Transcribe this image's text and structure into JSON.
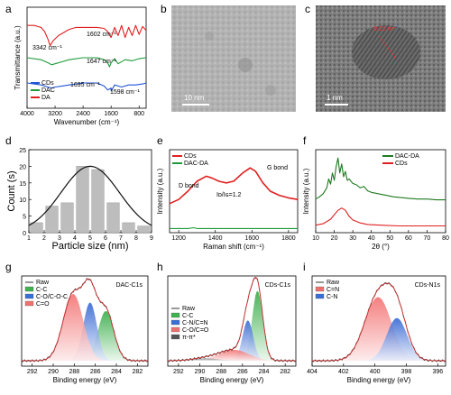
{
  "panels": {
    "a": {
      "label": "a"
    },
    "b": {
      "label": "b",
      "scalebar": "10 nm"
    },
    "c": {
      "label": "c",
      "scalebar": "1 nm",
      "lattice": "0.21 nm"
    },
    "d": {
      "label": "d"
    },
    "e": {
      "label": "e"
    },
    "f": {
      "label": "f"
    },
    "g": {
      "label": "g"
    },
    "h": {
      "label": "h"
    },
    "i": {
      "label": "i"
    }
  },
  "chart_data": [
    {
      "id": "a",
      "type": "line",
      "xlabel": "Wavenumber (cm⁻¹)",
      "ylabel": "Transmittance (a.u.)",
      "xlim": [
        4000,
        600
      ],
      "xticks": [
        "4000",
        "3200",
        "2400",
        "1600",
        "800"
      ],
      "legend": {
        "placement": "bottom-left",
        "entries": [
          "CDs",
          "DAC",
          "DA"
        ]
      },
      "annotations": [
        "3342 cm⁻¹",
        "1602 cm⁻¹",
        "1647 cm⁻¹",
        "1695 cm⁻¹",
        "1598 cm⁻¹"
      ],
      "series": [
        {
          "name": "DA",
          "color": "#e02020",
          "offset": 0.82,
          "x": [
            4000,
            3800,
            3600,
            3500,
            3400,
            3342,
            3250,
            3100,
            3000,
            2800,
            2600,
            2400,
            2200,
            2000,
            1800,
            1700,
            1602,
            1500,
            1400,
            1300,
            1200,
            1100,
            1000,
            900,
            800,
            700,
            600
          ],
          "y": [
            0.0,
            0.0,
            -0.02,
            -0.06,
            -0.14,
            -0.2,
            -0.15,
            -0.1,
            -0.08,
            -0.04,
            -0.02,
            -0.02,
            -0.02,
            -0.02,
            -0.03,
            -0.06,
            -0.12,
            -0.02,
            -0.1,
            0.0,
            -0.12,
            -0.02,
            -0.1,
            0.0,
            -0.09,
            -0.01,
            -0.05
          ]
        },
        {
          "name": "DAC",
          "color": "#1f9a3a",
          "offset": 0.5,
          "x": [
            4000,
            3600,
            3400,
            3300,
            3200,
            3000,
            2800,
            2400,
            2000,
            1800,
            1700,
            1647,
            1600,
            1500,
            1400,
            1200,
            1000,
            800,
            600
          ],
          "y": [
            0.0,
            -0.02,
            -0.05,
            -0.07,
            -0.06,
            -0.04,
            -0.02,
            0.0,
            0.0,
            -0.02,
            -0.05,
            -0.09,
            -0.05,
            -0.01,
            -0.06,
            -0.02,
            -0.03,
            -0.01,
            0.0
          ]
        },
        {
          "name": "CDs",
          "color": "#2255d6",
          "offset": 0.25,
          "x": [
            4000,
            3600,
            3400,
            3300,
            3200,
            3000,
            2800,
            2400,
            2000,
            1800,
            1695,
            1600,
            1598,
            1500,
            1300,
            1100,
            900,
            700,
            600
          ],
          "y": [
            0.0,
            -0.02,
            -0.04,
            -0.05,
            -0.04,
            -0.03,
            -0.02,
            0.0,
            0.0,
            -0.03,
            -0.07,
            -0.05,
            -0.08,
            -0.02,
            -0.04,
            -0.02,
            -0.02,
            -0.01,
            0.0
          ]
        }
      ]
    },
    {
      "id": "d",
      "type": "bar",
      "xlabel": "Particle size (nm)",
      "ylabel": "Count (s)",
      "xlim": [
        1,
        9
      ],
      "ylim": [
        0,
        25
      ],
      "xticks": [
        "1",
        "2",
        "3",
        "4",
        "5",
        "6",
        "7",
        "8",
        "9"
      ],
      "yticks": [
        "0",
        "5",
        "10",
        "15",
        "20",
        "25"
      ],
      "bars": {
        "x": [
          1.5,
          2.5,
          3.5,
          4.5,
          5.5,
          6.5,
          7.5,
          8.5
        ],
        "values": [
          3,
          8,
          9,
          20,
          19,
          9,
          3,
          2
        ]
      },
      "fit": {
        "type": "gaussian",
        "mean": 5.0,
        "sigma": 1.9,
        "peak": 20
      }
    },
    {
      "id": "e",
      "type": "line",
      "xlabel": "Raman shift (cm⁻¹)",
      "ylabel": "Intensity (a.u.)",
      "xlim": [
        1150,
        1850
      ],
      "xticks": [
        "1200",
        "1400",
        "1600",
        "1800"
      ],
      "legend": {
        "placement": "top-left",
        "entries": [
          "CDs",
          "DAC-DA"
        ]
      },
      "annotations": [
        "D bond",
        "G bond",
        "Iᴅ/Iɢ=1.2"
      ],
      "series": [
        {
          "name": "CDs",
          "color": "#e02020",
          "x": [
            1150,
            1200,
            1250,
            1300,
            1350,
            1380,
            1420,
            1460,
            1500,
            1550,
            1590,
            1620,
            1660,
            1700,
            1750,
            1800,
            1850
          ],
          "y": [
            0.35,
            0.4,
            0.5,
            0.62,
            0.68,
            0.66,
            0.62,
            0.6,
            0.62,
            0.72,
            0.78,
            0.74,
            0.6,
            0.5,
            0.45,
            0.42,
            0.4
          ]
        },
        {
          "name": "DAC-DA",
          "color": "#1f9a3a",
          "x": [
            1150,
            1250,
            1280,
            1300,
            1320,
            1400,
            1500,
            1600,
            1700,
            1850
          ],
          "y": [
            0.05,
            0.05,
            0.06,
            0.05,
            0.05,
            0.05,
            0.05,
            0.05,
            0.05,
            0.05
          ]
        }
      ]
    },
    {
      "id": "f",
      "type": "line",
      "xlabel": "2θ (°)",
      "ylabel": "Intensity (a.u.)",
      "xlim": [
        10,
        80
      ],
      "xticks": [
        "10",
        "20",
        "30",
        "40",
        "50",
        "60",
        "70",
        "80"
      ],
      "legend": {
        "placement": "top-right",
        "entries": [
          "DAC-DA",
          "CDs"
        ]
      },
      "series": [
        {
          "name": "DAC-DA",
          "color": "#1f7a1f",
          "x": [
            10,
            12,
            14,
            16,
            17,
            18,
            19,
            20,
            21,
            22,
            23,
            24,
            25,
            26,
            27,
            28,
            30,
            32,
            34,
            36,
            38,
            40,
            44,
            48,
            52,
            56,
            60,
            65,
            70,
            75,
            80
          ],
          "y": [
            0.45,
            0.48,
            0.52,
            0.6,
            0.72,
            0.65,
            0.8,
            0.7,
            0.88,
            1.0,
            0.8,
            0.92,
            0.75,
            0.82,
            0.7,
            0.72,
            0.66,
            0.64,
            0.6,
            0.62,
            0.56,
            0.54,
            0.52,
            0.5,
            0.48,
            0.47,
            0.46,
            0.45,
            0.45,
            0.44,
            0.44
          ]
        },
        {
          "name": "CDs",
          "color": "#e02020",
          "x": [
            10,
            14,
            18,
            20,
            22,
            24,
            26,
            28,
            30,
            34,
            38,
            45,
            55,
            65,
            80
          ],
          "y": [
            0.1,
            0.12,
            0.18,
            0.24,
            0.3,
            0.33,
            0.3,
            0.22,
            0.17,
            0.13,
            0.11,
            0.1,
            0.09,
            0.09,
            0.09
          ]
        }
      ]
    },
    {
      "id": "g",
      "type": "line",
      "title": "DAC-C1s",
      "xlabel": "Binding energy (eV)",
      "xlim": [
        293,
        281
      ],
      "xticks": [
        "292",
        "290",
        "288",
        "286",
        "284",
        "282"
      ],
      "legend": {
        "placement": "top-left",
        "entries": [
          "Raw",
          "C-C",
          "C-O/C-O-C",
          "C=O"
        ]
      },
      "components": [
        {
          "name": "C-C",
          "color": "#3fb34f",
          "center": 285.0,
          "height": 0.64,
          "width": 0.75
        },
        {
          "name": "C-O/C-O-C",
          "color": "#3a6fd8",
          "center": 286.5,
          "height": 0.75,
          "width": 0.65
        },
        {
          "name": "C=O",
          "color": "#f07070",
          "center": 288.1,
          "height": 0.86,
          "width": 0.95
        }
      ]
    },
    {
      "id": "h",
      "type": "line",
      "title": "CDs-C1s",
      "xlabel": "Binding energy (eV)",
      "xlim": [
        293,
        281
      ],
      "xticks": [
        "292",
        "290",
        "288",
        "286",
        "284",
        "282"
      ],
      "legend": {
        "placement": "bottom-left",
        "entries": [
          "Raw",
          "C-C",
          "C-N/C=N",
          "C-O/C=O",
          "π-π*"
        ]
      },
      "components": [
        {
          "name": "C-C",
          "color": "#3fb34f",
          "center": 284.6,
          "height": 0.9,
          "width": 0.5
        },
        {
          "name": "C-N/C=N",
          "color": "#3a6fd8",
          "center": 285.5,
          "height": 0.52,
          "width": 0.5
        },
        {
          "name": "C-O/C=O",
          "color": "#f07070",
          "center": 286.8,
          "height": 0.14,
          "width": 1.4
        },
        {
          "name": "π-π*",
          "color": "#555555",
          "center": 289.5,
          "height": 0.03,
          "width": 1.2
        }
      ]
    },
    {
      "id": "i",
      "type": "line",
      "title": "CDs-N1s",
      "xlabel": "Binding energy (eV)",
      "xlim": [
        404,
        395.5
      ],
      "xticks": [
        "404",
        "402",
        "400",
        "398",
        "396"
      ],
      "legend": {
        "placement": "top-left",
        "entries": [
          "Raw",
          "C=N",
          "C-N"
        ]
      },
      "components": [
        {
          "name": "C=N",
          "color": "#f07070",
          "center": 399.8,
          "height": 0.82,
          "width": 0.85
        },
        {
          "name": "C-N",
          "color": "#3a6fd8",
          "center": 398.6,
          "height": 0.55,
          "width": 0.65
        }
      ]
    }
  ]
}
